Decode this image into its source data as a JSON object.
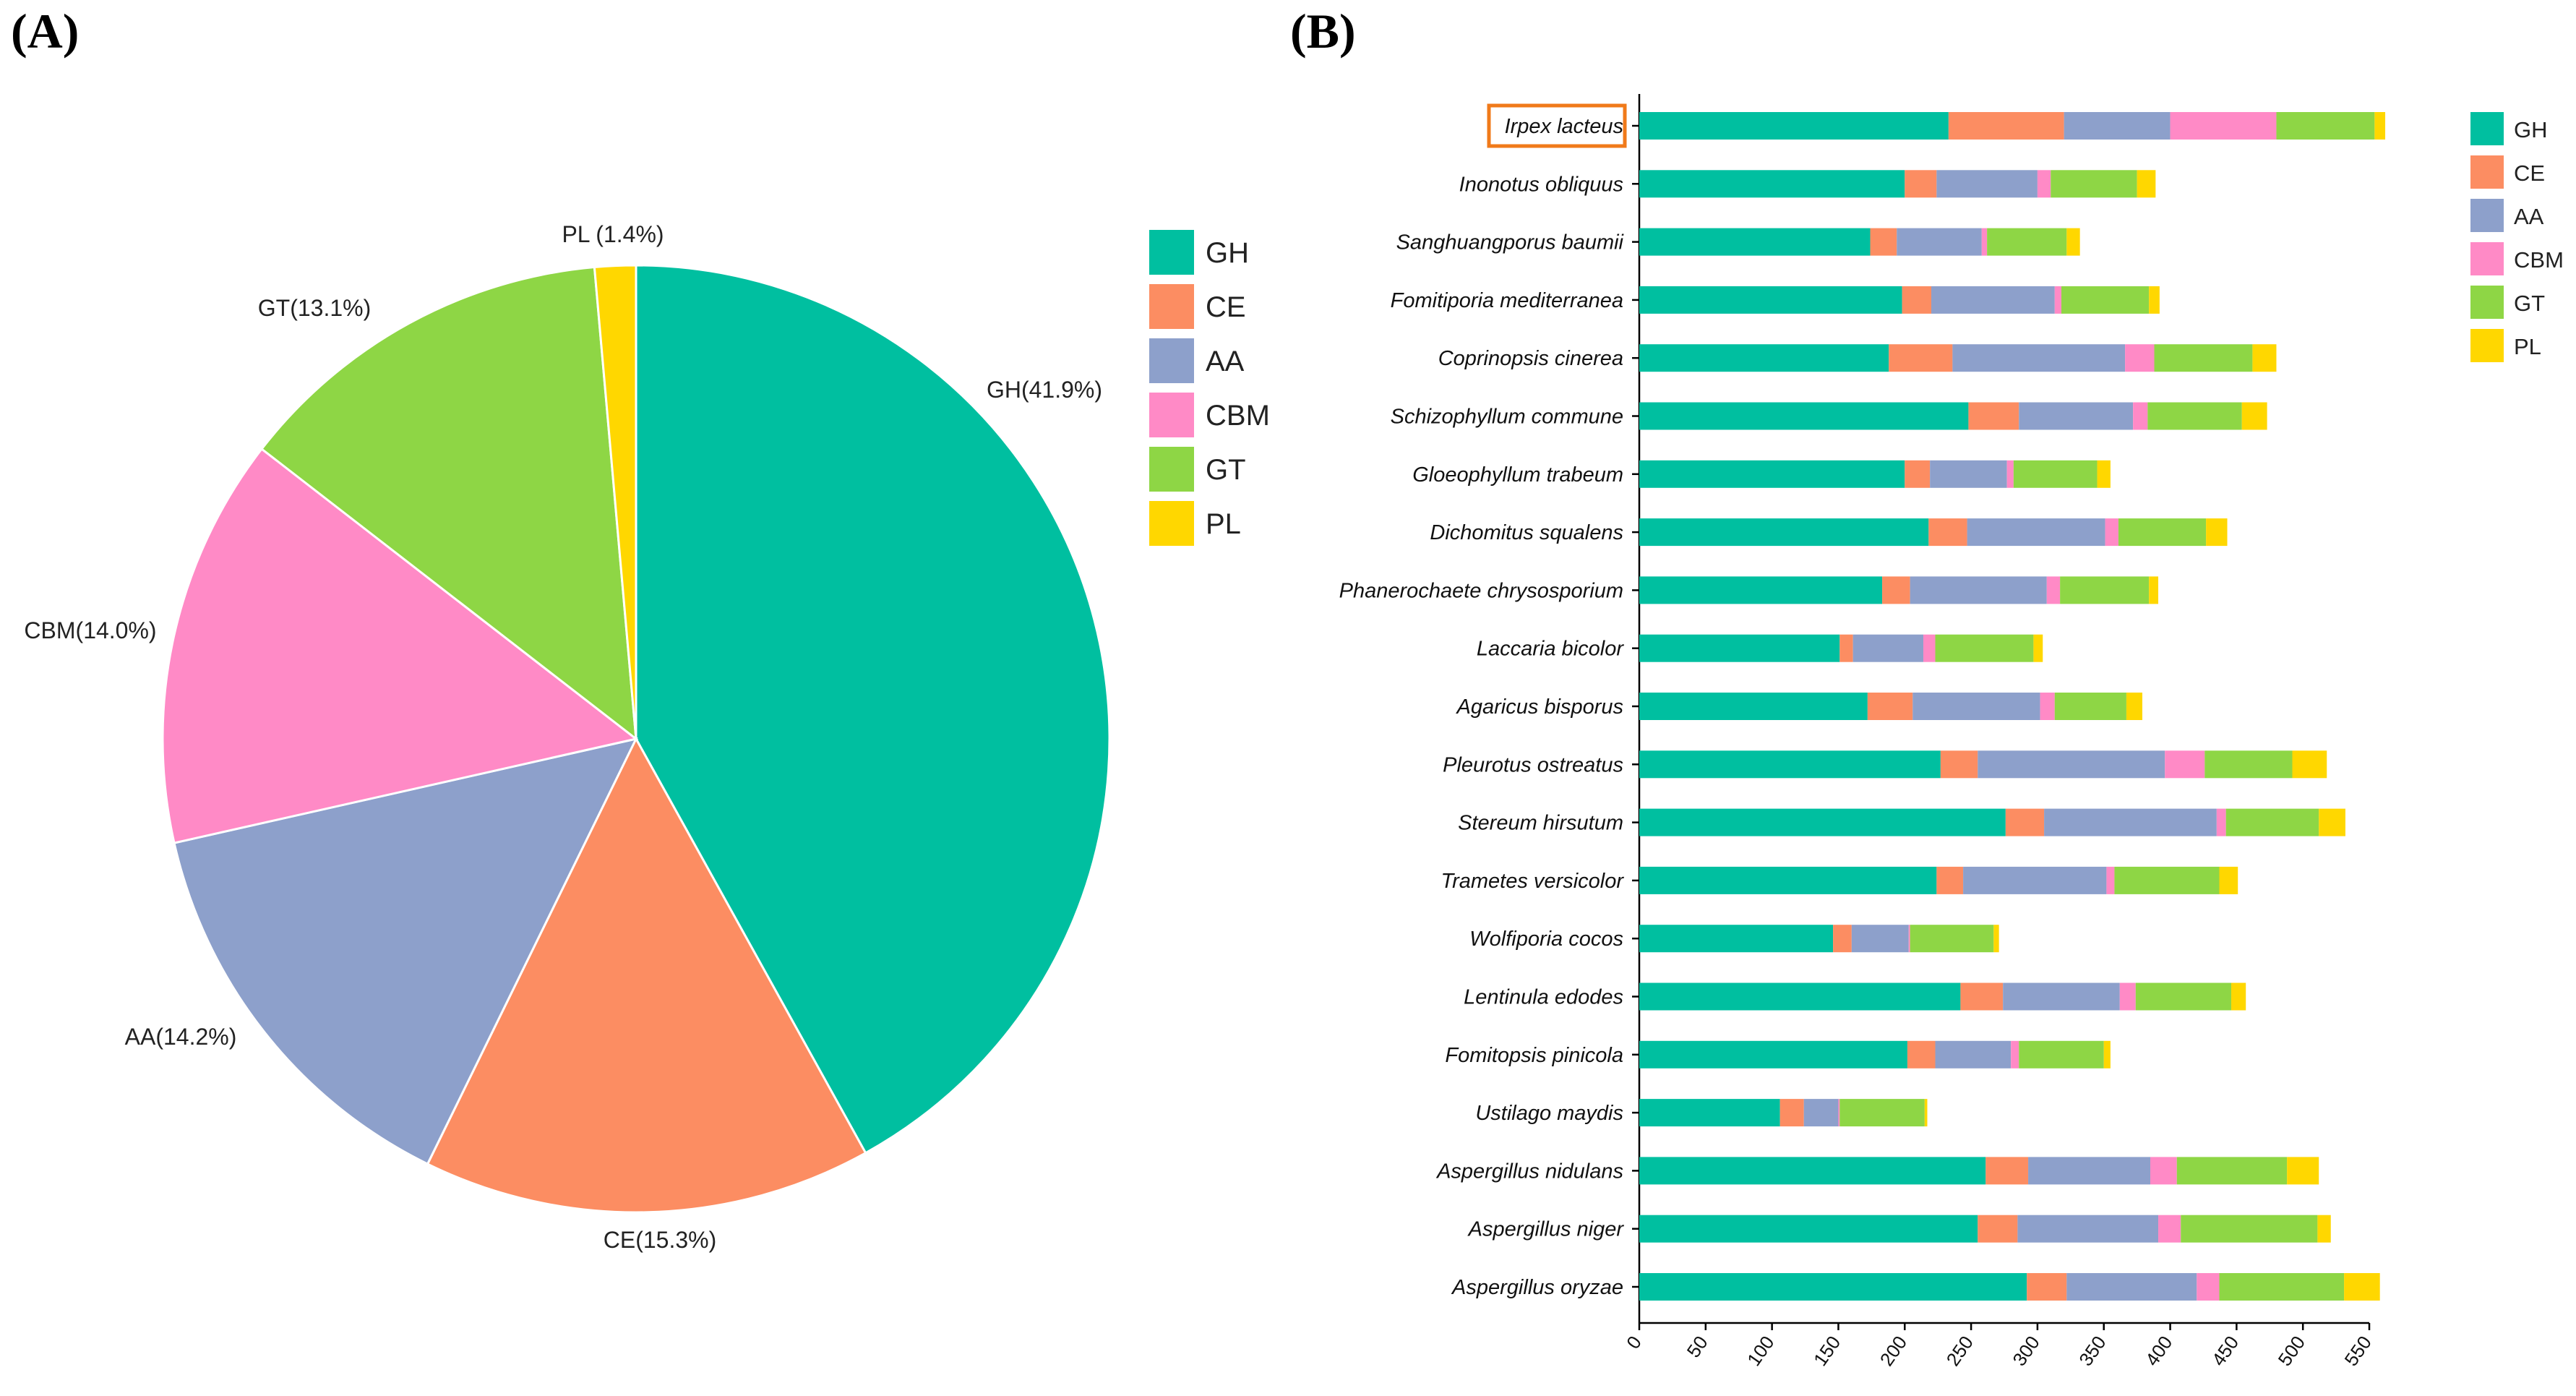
{
  "panels": {
    "a_label": "(A)",
    "b_label": "(B)"
  },
  "colors": {
    "GH": "#00BFA0",
    "CE": "#FC8D62",
    "AA": "#8DA0CB",
    "CBM": "#FF8AC6",
    "GT": "#8ED645",
    "PL": "#FFD700",
    "highlight": "#F07A1A"
  },
  "chart_data": [
    {
      "type": "pie",
      "title": "",
      "slices": [
        {
          "name": "GH",
          "value": 41.9,
          "label": "GH(41.9%)"
        },
        {
          "name": "CE",
          "value": 15.3,
          "label": "CE(15.3%)"
        },
        {
          "name": "AA",
          "value": 14.2,
          "label": "AA(14.2%)"
        },
        {
          "name": "CBM",
          "value": 14.0,
          "label": "CBM(14.0%)"
        },
        {
          "name": "GT",
          "value": 13.1,
          "label": "GT(13.1%)"
        },
        {
          "name": "PL",
          "value": 1.4,
          "label": "PL (1.4%)"
        }
      ],
      "legend": [
        "GH",
        "CE",
        "AA",
        "CBM",
        "GT",
        "PL"
      ],
      "legend_position": "right"
    },
    {
      "type": "bar",
      "orientation": "horizontal",
      "stacked": true,
      "title": "",
      "xlabel": "",
      "ylabel": "",
      "xlim": [
        0,
        550
      ],
      "xticks": [
        0,
        50,
        100,
        150,
        200,
        250,
        300,
        350,
        400,
        450,
        500,
        550
      ],
      "highlighted_category": "Irpex lacteus",
      "categories": [
        "Irpex lacteus",
        "Inonotus obliquus",
        "Sanghuangporus baumii",
        "Fomitiporia mediterranea",
        "Coprinopsis cinerea",
        "Schizophyllum commune",
        "Gloeophyllum trabeum",
        "Dichomitus squalens",
        "Phanerochaete chrysosporium",
        "Laccaria bicolor",
        "Agaricus bisporus",
        "Pleurotus ostreatus",
        "Stereum hirsutum",
        "Trametes versicolor",
        "Wolfiporia cocos",
        "Lentinula edodes",
        "Fomitopsis pinicola",
        "Ustilago maydis",
        "Aspergillus nidulans",
        "Aspergillus niger",
        "Aspergillus oryzae"
      ],
      "series": [
        {
          "name": "GH",
          "values": [
            233,
            200,
            174,
            198,
            188,
            248,
            200,
            218,
            183,
            151,
            172,
            227,
            276,
            224,
            146,
            242,
            202,
            106,
            261,
            255,
            292
          ]
        },
        {
          "name": "CE",
          "values": [
            87,
            24,
            20,
            22,
            48,
            38,
            19,
            29,
            21,
            10,
            34,
            28,
            29,
            20,
            14,
            32,
            21,
            18,
            32,
            30,
            30
          ]
        },
        {
          "name": "AA",
          "values": [
            80,
            76,
            64,
            93,
            130,
            86,
            58,
            104,
            103,
            53,
            96,
            141,
            130,
            108,
            43,
            88,
            57,
            26,
            92,
            106,
            98
          ]
        },
        {
          "name": "CBM",
          "values": [
            80,
            10,
            4,
            5,
            22,
            11,
            5,
            10,
            10,
            9,
            11,
            30,
            7,
            6,
            1,
            12,
            6,
            1,
            20,
            17,
            17
          ]
        },
        {
          "name": "GT",
          "values": [
            74,
            65,
            60,
            66,
            74,
            71,
            63,
            66,
            67,
            74,
            54,
            66,
            70,
            79,
            63,
            72,
            64,
            64,
            83,
            103,
            94
          ]
        },
        {
          "name": "PL",
          "values": [
            8,
            14,
            10,
            8,
            18,
            19,
            10,
            16,
            7,
            7,
            12,
            26,
            20,
            14,
            4,
            11,
            5,
            2,
            24,
            10,
            27
          ]
        }
      ],
      "legend": [
        "GH",
        "CE",
        "AA",
        "CBM",
        "GT",
        "PL"
      ],
      "legend_position": "right"
    }
  ]
}
